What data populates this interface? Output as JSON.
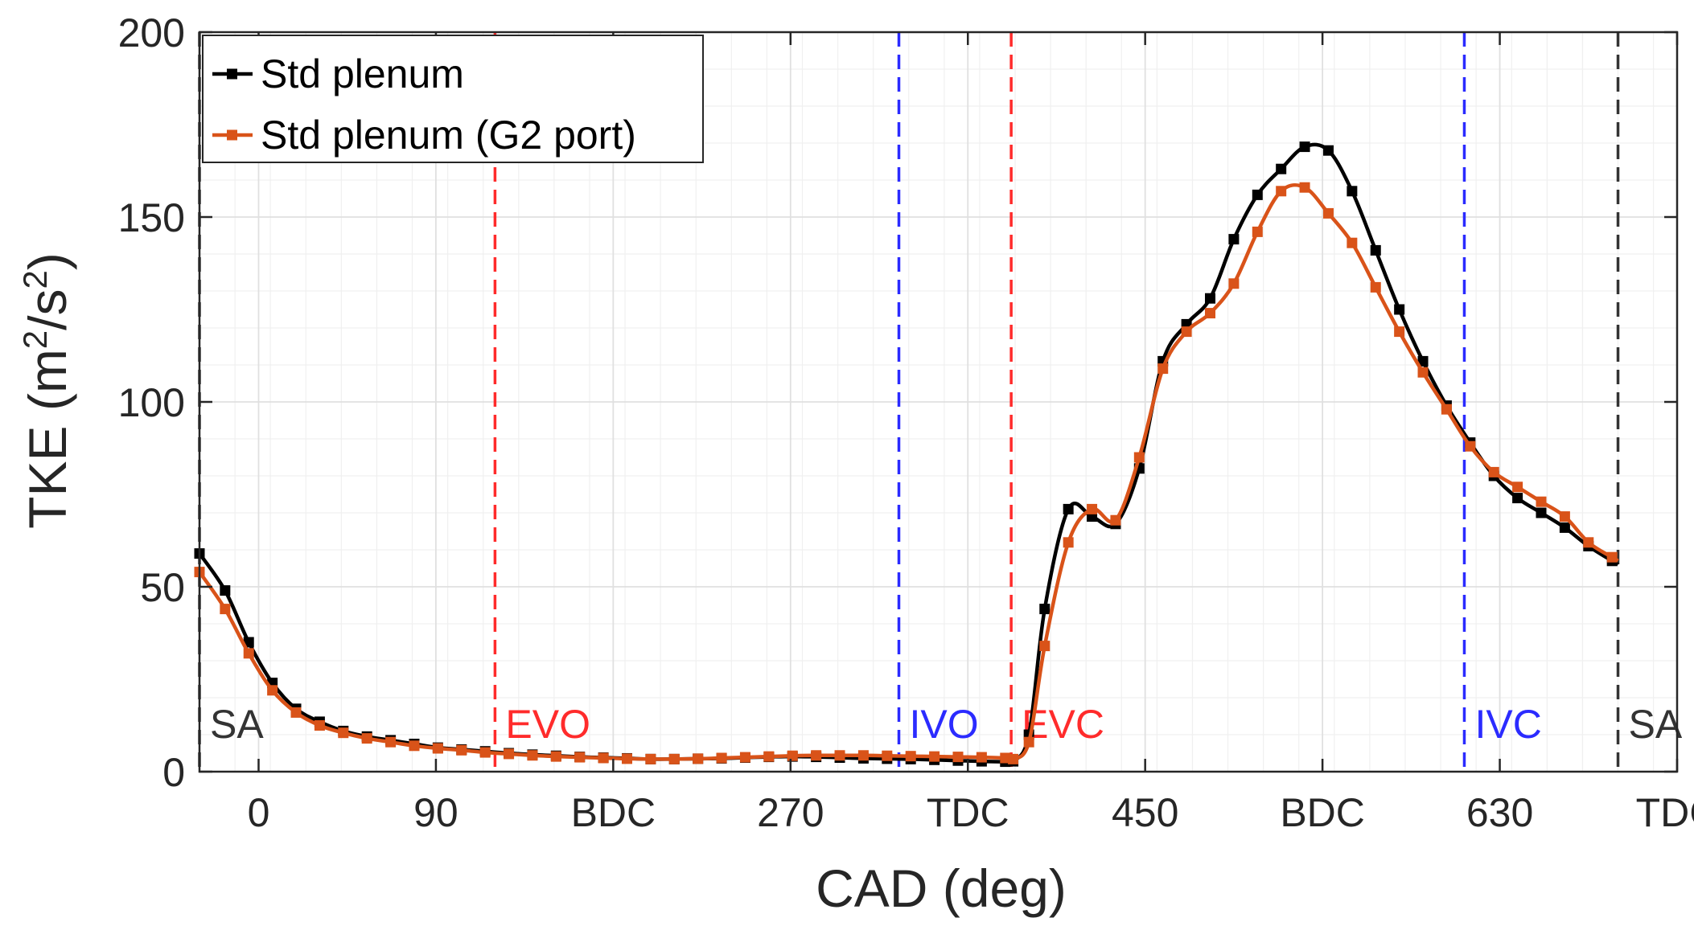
{
  "chart_data": {
    "type": "line",
    "title": "",
    "xlabel": "CAD (deg)",
    "ylabel": {
      "main": "TKE (m",
      "sup1": "2",
      "mid": "/s",
      "sup2": "2",
      "end": ")"
    },
    "xlim": [
      -30,
      720
    ],
    "ylim": [
      0,
      200
    ],
    "grid": true,
    "legend_position": "top-left",
    "x_ticks": [
      {
        "value": 0,
        "label": "0"
      },
      {
        "value": 90,
        "label": "90"
      },
      {
        "value": 180,
        "label": "BDC"
      },
      {
        "value": 270,
        "label": "270"
      },
      {
        "value": 360,
        "label": "TDC"
      },
      {
        "value": 450,
        "label": "450"
      },
      {
        "value": 540,
        "label": "BDC"
      },
      {
        "value": 630,
        "label": "630"
      },
      {
        "value": 720,
        "label": "TDC"
      }
    ],
    "y_ticks": [
      {
        "value": 0,
        "label": "0"
      },
      {
        "value": 50,
        "label": "50"
      },
      {
        "value": 100,
        "label": "100"
      },
      {
        "value": 150,
        "label": "150"
      },
      {
        "value": 200,
        "label": "200"
      }
    ],
    "events": [
      {
        "label": "SA",
        "x": -30,
        "color": "#333333"
      },
      {
        "label": "EVO",
        "x": 120,
        "color": "#ff2b2b"
      },
      {
        "label": "IVO",
        "x": 325,
        "color": "#2b2bff"
      },
      {
        "label": "EVC",
        "x": 382,
        "color": "#ff2b2b"
      },
      {
        "label": "IVC",
        "x": 612,
        "color": "#2b2bff"
      },
      {
        "label": "SA",
        "x": 690,
        "color": "#333333"
      }
    ],
    "series": [
      {
        "name": "Std plenum",
        "color": "#000000",
        "x": [
          -30,
          -17,
          -5,
          7,
          19,
          31,
          43,
          55,
          67,
          79,
          91,
          103,
          115,
          127,
          139,
          151,
          163,
          175,
          187,
          199,
          211,
          223,
          235,
          247,
          259,
          271,
          283,
          295,
          307,
          319,
          331,
          343,
          355,
          367,
          379,
          383,
          391,
          399,
          411,
          423,
          435,
          447,
          459,
          471,
          483,
          495,
          507,
          519,
          531,
          543,
          555,
          567,
          579,
          591,
          603,
          615,
          627,
          639,
          651,
          663,
          675,
          687,
          690
        ],
        "y": [
          59,
          49,
          35,
          24,
          17,
          13.5,
          11,
          9.5,
          8.5,
          7.5,
          6.5,
          6,
          5.5,
          5,
          4.6,
          4.3,
          4,
          3.8,
          3.6,
          3.4,
          3.4,
          3.5,
          3.6,
          3.8,
          4,
          4.1,
          4,
          3.8,
          3.6,
          3.5,
          3.4,
          3.2,
          3,
          2.8,
          2.7,
          2.8,
          10,
          44,
          71,
          69,
          67,
          82,
          111,
          121,
          128,
          144,
          156,
          163,
          169,
          168,
          157,
          141,
          125,
          111,
          99,
          89,
          80,
          74,
          70,
          66,
          61,
          57,
          56
        ]
      },
      {
        "name": "Std plenum (G2 port)",
        "color": "#d95319",
        "x": [
          -30,
          -17,
          -5,
          7,
          19,
          31,
          43,
          55,
          67,
          79,
          91,
          103,
          115,
          127,
          139,
          151,
          163,
          175,
          187,
          199,
          211,
          223,
          235,
          247,
          259,
          271,
          283,
          295,
          307,
          319,
          331,
          343,
          355,
          367,
          379,
          383,
          391,
          399,
          411,
          423,
          435,
          447,
          459,
          471,
          483,
          495,
          507,
          519,
          531,
          543,
          555,
          567,
          579,
          591,
          603,
          615,
          627,
          639,
          651,
          663,
          675,
          687,
          690
        ],
        "y": [
          54,
          44,
          32,
          22,
          16,
          12.5,
          10.5,
          9,
          8,
          7,
          6.3,
          5.8,
          5.2,
          4.8,
          4.4,
          4.1,
          3.9,
          3.7,
          3.5,
          3.4,
          3.4,
          3.5,
          3.7,
          3.9,
          4.1,
          4.3,
          4.4,
          4.4,
          4.4,
          4.3,
          4.2,
          4.1,
          4,
          3.9,
          3.7,
          3.4,
          8,
          34,
          62,
          71,
          68,
          85,
          109,
          119,
          124,
          132,
          146,
          157,
          158,
          151,
          143,
          131,
          119,
          108,
          98,
          88,
          81,
          77,
          73,
          69,
          62,
          58,
          57
        ]
      }
    ]
  }
}
